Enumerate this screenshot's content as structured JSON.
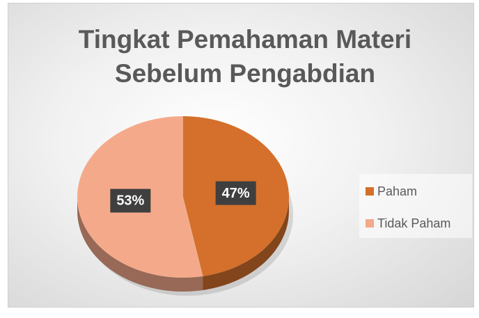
{
  "chart_data": {
    "type": "pie",
    "title": "Tingkat Pemahaman Materi Sebelum Pengabdian",
    "categories": [
      "Paham",
      "Tidak Paham"
    ],
    "values": [
      47,
      53
    ],
    "value_labels": [
      "47%",
      "53%"
    ],
    "colors": [
      "#d4702b",
      "#f4aa8a"
    ],
    "legend": "right"
  }
}
